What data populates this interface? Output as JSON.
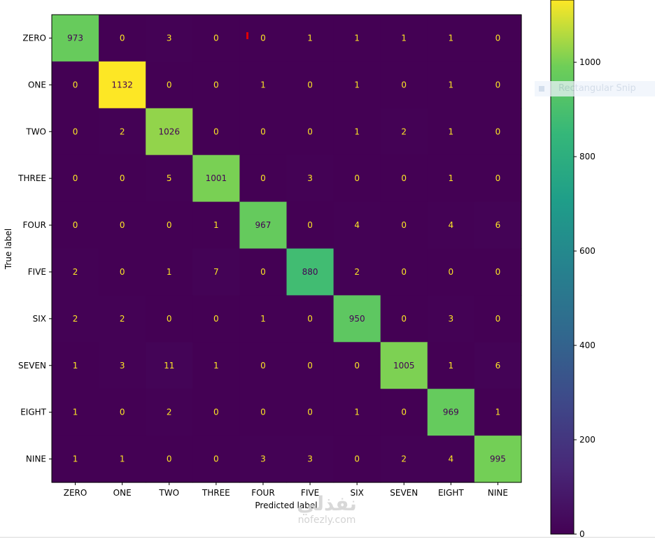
{
  "chart_data": {
    "type": "heatmap",
    "title": "",
    "xlabel": "Predicted label",
    "ylabel": "True label",
    "x_categories": [
      "ZERO",
      "ONE",
      "TWO",
      "THREE",
      "FOUR",
      "FIVE",
      "SIX",
      "SEVEN",
      "EIGHT",
      "NINE"
    ],
    "y_categories": [
      "ZERO",
      "ONE",
      "TWO",
      "THREE",
      "FOUR",
      "FIVE",
      "SIX",
      "SEVEN",
      "EIGHT",
      "NINE"
    ],
    "values": [
      [
        973,
        0,
        3,
        0,
        0,
        1,
        1,
        1,
        1,
        0
      ],
      [
        0,
        1132,
        0,
        0,
        1,
        0,
        1,
        0,
        1,
        0
      ],
      [
        0,
        2,
        1026,
        0,
        0,
        0,
        1,
        2,
        1,
        0
      ],
      [
        0,
        0,
        5,
        1001,
        0,
        3,
        0,
        0,
        1,
        0
      ],
      [
        0,
        0,
        0,
        1,
        967,
        0,
        4,
        0,
        4,
        6
      ],
      [
        2,
        0,
        1,
        7,
        0,
        880,
        2,
        0,
        0,
        0
      ],
      [
        2,
        2,
        0,
        0,
        1,
        0,
        950,
        0,
        3,
        0
      ],
      [
        1,
        3,
        11,
        1,
        0,
        0,
        0,
        1005,
        1,
        6
      ],
      [
        1,
        0,
        2,
        0,
        0,
        0,
        1,
        0,
        969,
        1
      ],
      [
        1,
        1,
        0,
        0,
        3,
        3,
        0,
        2,
        4,
        995
      ]
    ],
    "colormap": "viridis",
    "colorbar_range": [
      0,
      1132
    ],
    "colorbar_ticks": [
      "0",
      "200",
      "400",
      "600",
      "800",
      "1000"
    ],
    "colorbar_tick_values": [
      0,
      200,
      400,
      600,
      800,
      1000
    ],
    "grid": false
  },
  "overlay": {
    "snip_text": "Rectangular Snip",
    "watermark_main": "نفذلي",
    "watermark_sub": "nofezly.com"
  }
}
